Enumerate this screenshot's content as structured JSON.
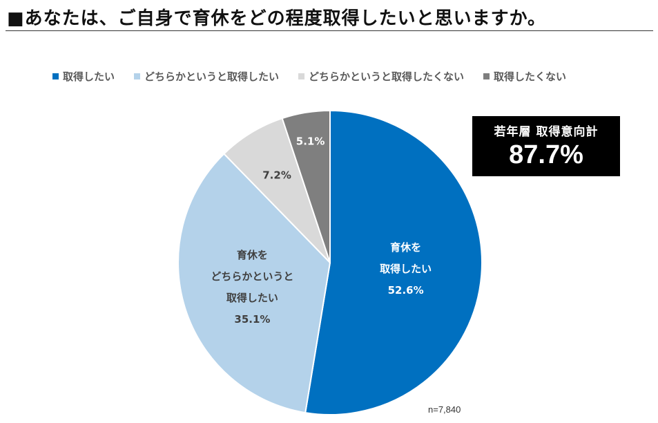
{
  "header": {
    "title": "■あなたは、ご自身で育休をどの程度取得したいと思いますか。"
  },
  "callout": {
    "label": "若年層 取得意向計",
    "value": "87.7%"
  },
  "sample": {
    "text": "n=7,840"
  },
  "chart_data": {
    "type": "pie",
    "title": "あなたは、ご自身で育休をどの程度取得したいと思いますか。",
    "slices": [
      {
        "name": "取得したい",
        "value": 52.6,
        "color": "#0070c0",
        "label_lines": [
          "育休を",
          "取得したい",
          "52.6%"
        ],
        "label_color": "#ffffff"
      },
      {
        "name": "どちらかというと取得したい",
        "value": 35.1,
        "color": "#b4d2ea",
        "label_lines": [
          "育休を",
          "どちらかというと",
          "取得したい",
          "35.1%"
        ],
        "label_color": "#404040"
      },
      {
        "name": "どちらかというと取得したくない",
        "value": 7.2,
        "color": "#d9d9d9",
        "label_lines": [
          "7.2%"
        ],
        "label_color": "#404040"
      },
      {
        "name": "取得したくない",
        "value": 5.1,
        "color": "#7f7f7f",
        "label_lines": [
          "5.1%"
        ],
        "label_color": "#ffffff"
      }
    ],
    "legend_position": "top",
    "start_angle": "12 o'clock",
    "direction": "clockwise"
  }
}
